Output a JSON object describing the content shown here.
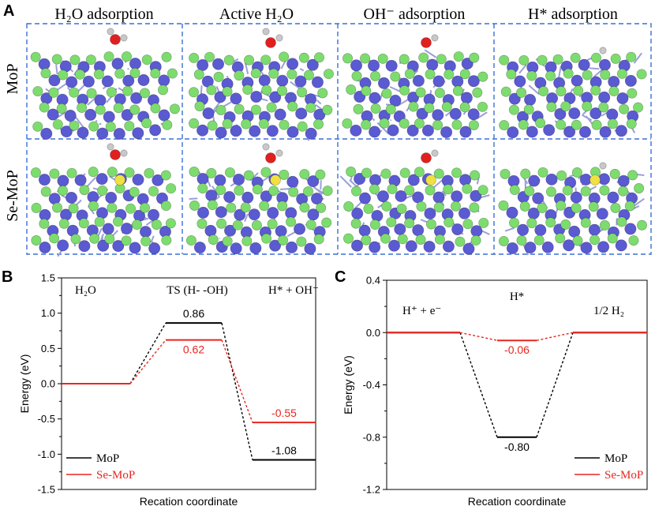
{
  "panel_a": {
    "letter": "A",
    "column_titles": [
      "H₂O adsorption",
      "Active  H₂O",
      "OH⁻ adsorption",
      "H* adsorption"
    ],
    "row_labels": [
      "MoP",
      "Se-MoP"
    ],
    "colors": {
      "mo": "#5a5ad2",
      "p": "#7ddc6e",
      "o": "#e02020",
      "h": "#c8c8c8",
      "se": "#f0e040",
      "frame": "#3a6fd8"
    }
  },
  "chart_data": [
    {
      "letter": "B",
      "type": "line",
      "title": "",
      "xlabel": "Recation coordinate",
      "ylabel": "Energy (eV)",
      "ylim": [
        -1.5,
        1.5
      ],
      "yticks": [
        -1.5,
        -1.0,
        -0.5,
        0.0,
        0.5,
        1.0,
        1.5
      ],
      "ytick_labels": [
        "-1.5",
        "-1.0",
        "-0.5",
        "0.0",
        "0.5",
        "1.0",
        "1.5"
      ],
      "states": [
        "H₂O",
        "TS (H- -OH)",
        "H* + OH⁻"
      ],
      "series": [
        {
          "name": "MoP",
          "color": "#000000",
          "values": [
            0.0,
            0.86,
            -1.08
          ],
          "labels": [
            "",
            "0.86",
            "-1.08"
          ]
        },
        {
          "name": "Se-MoP",
          "color": "#e8261f",
          "values": [
            0.0,
            0.62,
            -0.55
          ],
          "labels": [
            "",
            "0.62",
            "-0.55"
          ]
        }
      ],
      "legend": "bottom-left"
    },
    {
      "letter": "C",
      "type": "line",
      "title": "",
      "xlabel": "Recation coordinate",
      "ylabel": "Energy (eV)",
      "ylim": [
        -1.2,
        0.4
      ],
      "yticks": [
        -1.2,
        -0.8,
        -0.4,
        0.0,
        0.4
      ],
      "ytick_labels": [
        "-1.2",
        "-0.8",
        "-0.4",
        "0.0",
        "0.4"
      ],
      "states": [
        "H⁺ + e⁻",
        "H*",
        "1/2 H₂"
      ],
      "series": [
        {
          "name": "MoP",
          "color": "#000000",
          "values": [
            0.0,
            -0.8,
            0.0
          ],
          "labels": [
            "",
            "-0.80",
            ""
          ]
        },
        {
          "name": "Se-MoP",
          "color": "#e8261f",
          "values": [
            0.0,
            -0.06,
            0.0
          ],
          "labels": [
            "",
            "-0.06",
            ""
          ]
        }
      ],
      "legend": "bottom-right"
    }
  ]
}
